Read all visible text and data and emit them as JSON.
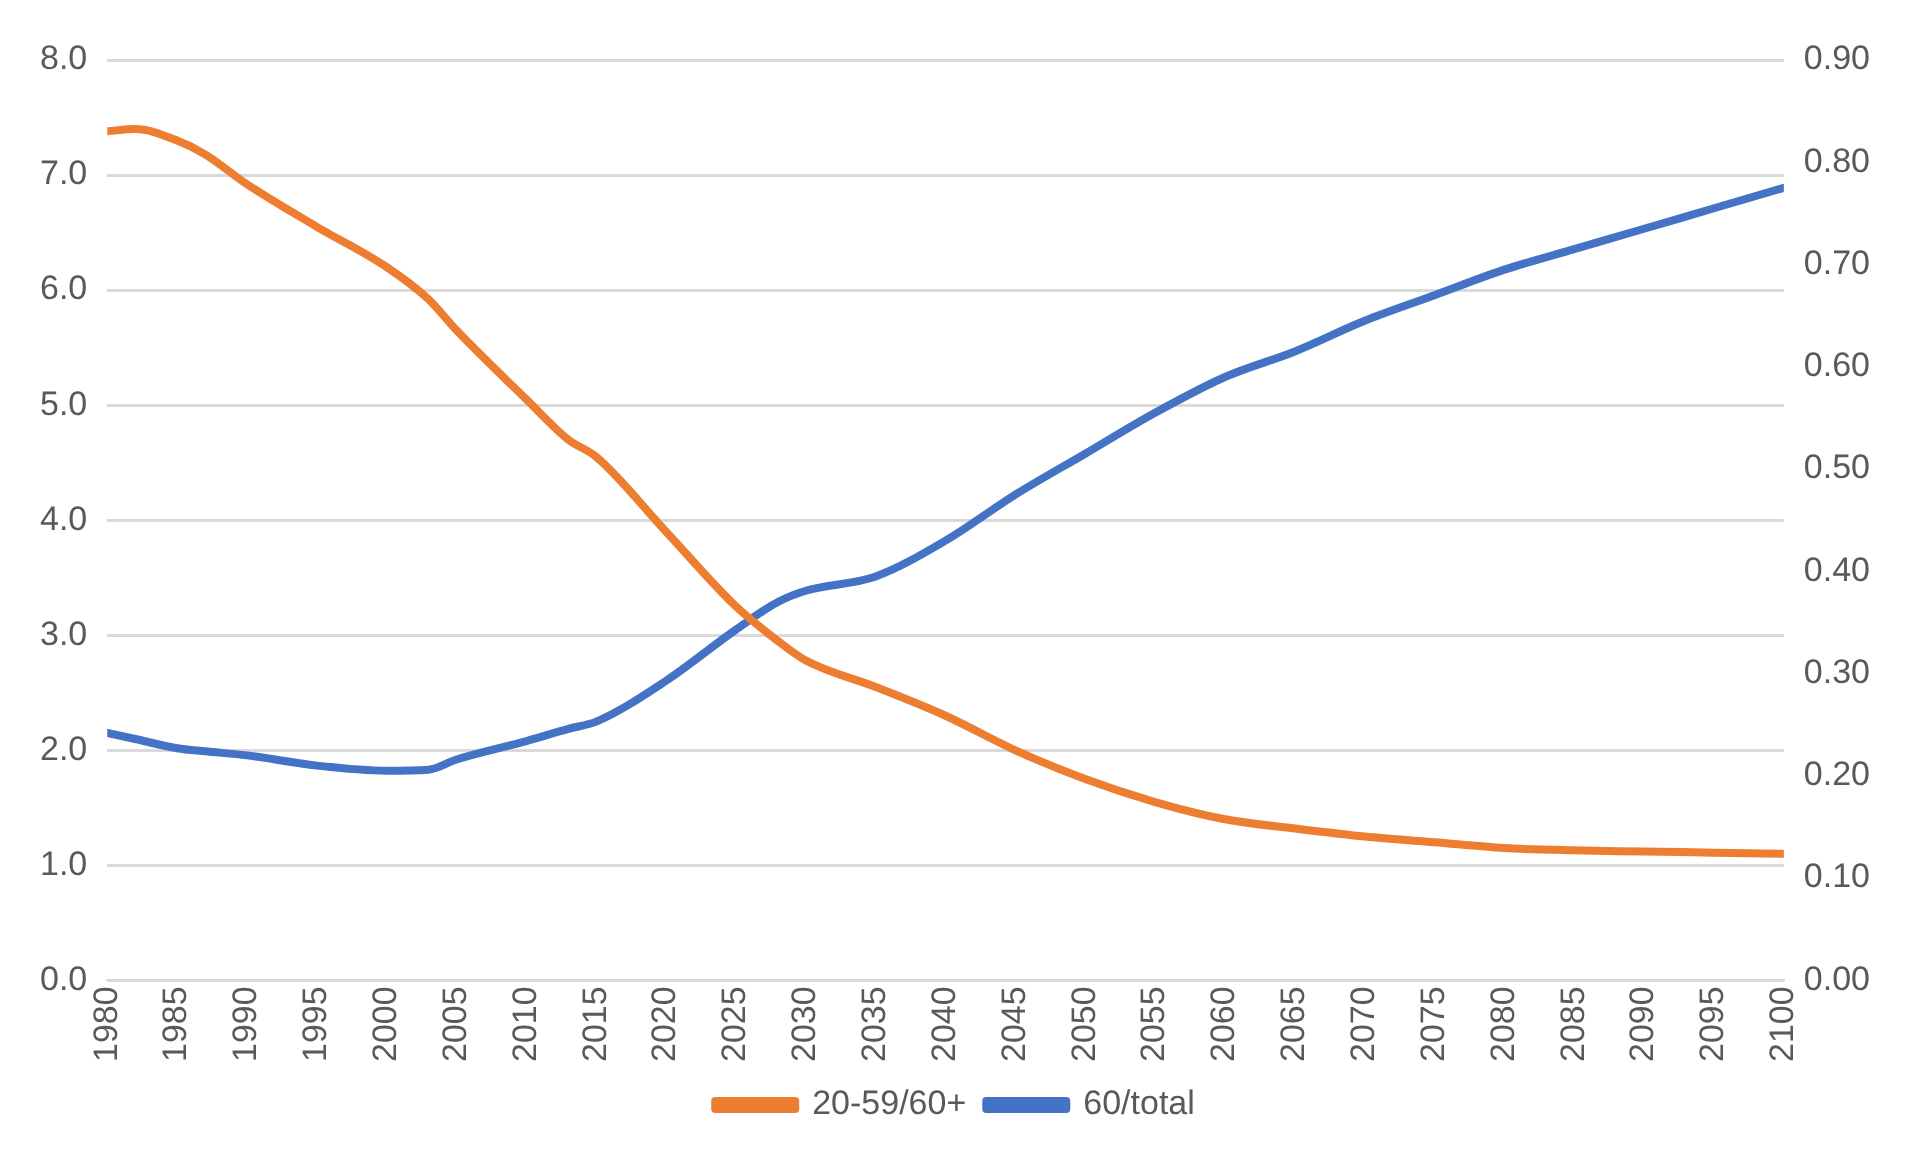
{
  "chart_data": {
    "type": "line",
    "x": [
      1980,
      1982,
      1985,
      1987,
      1990,
      1995,
      2000,
      2003,
      2005,
      2010,
      2013,
      2015,
      2020,
      2025,
      2028,
      2030,
      2035,
      2040,
      2045,
      2050,
      2055,
      2060,
      2065,
      2070,
      2075,
      2080,
      2085,
      2090,
      2095,
      2100
    ],
    "series": [
      {
        "name": "20-59/60+",
        "color": "#ed7d31",
        "values": [
          7.38,
          7.4,
          7.3,
          7.18,
          6.92,
          6.55,
          6.2,
          5.92,
          5.65,
          5.05,
          4.7,
          4.55,
          3.9,
          3.25,
          2.95,
          2.78,
          2.55,
          2.3,
          2.0,
          1.75,
          1.55,
          1.4,
          1.32,
          1.25,
          1.2,
          1.15,
          1.13,
          1.12,
          1.11,
          1.1
        ]
      },
      {
        "name": "60/total",
        "color": "#4472c4",
        "axis": "y2",
        "values": [
          0.242,
          0.236,
          0.227,
          0.224,
          0.22,
          0.21,
          0.205,
          0.206,
          0.216,
          0.234,
          0.246,
          0.253,
          0.293,
          0.343,
          0.37,
          0.381,
          0.395,
          0.43,
          0.475,
          0.515,
          0.555,
          0.59,
          0.615,
          0.645,
          0.67,
          0.695,
          0.715,
          0.735,
          0.755,
          0.775
        ]
      }
    ],
    "xlim": [
      1980,
      2100
    ],
    "xticks": [
      1980,
      1985,
      1990,
      1995,
      2000,
      2005,
      2010,
      2015,
      2020,
      2025,
      2030,
      2035,
      2040,
      2045,
      2050,
      2055,
      2060,
      2065,
      2070,
      2075,
      2080,
      2085,
      2090,
      2095,
      2100
    ],
    "ylim": [
      0,
      8
    ],
    "yticks": [
      {
        "value": 0,
        "label": "0.0"
      },
      {
        "value": 1,
        "label": "1.0"
      },
      {
        "value": 2,
        "label": "2.0"
      },
      {
        "value": 3,
        "label": "3.0"
      },
      {
        "value": 4,
        "label": "4.0"
      },
      {
        "value": 5,
        "label": "5.0"
      },
      {
        "value": 6,
        "label": "6.0"
      },
      {
        "value": 7,
        "label": "7.0"
      },
      {
        "value": 8,
        "label": "8.0"
      }
    ],
    "y2lim": [
      0,
      0.9
    ],
    "y2ticks": [
      {
        "value": 0,
        "label": "0.00"
      },
      {
        "value": 0.1,
        "label": "0.10"
      },
      {
        "value": 0.2,
        "label": "0.20"
      },
      {
        "value": 0.3,
        "label": "0.30"
      },
      {
        "value": 0.4,
        "label": "0.40"
      },
      {
        "value": 0.5,
        "label": "0.50"
      },
      {
        "value": 0.6,
        "label": "0.60"
      },
      {
        "value": 0.7,
        "label": "0.70"
      },
      {
        "value": 0.8,
        "label": "0.80"
      },
      {
        "value": 0.9,
        "label": "0.90"
      }
    ],
    "grid": "y",
    "legend": "bottom",
    "marker": "none",
    "line_style": "solid"
  }
}
